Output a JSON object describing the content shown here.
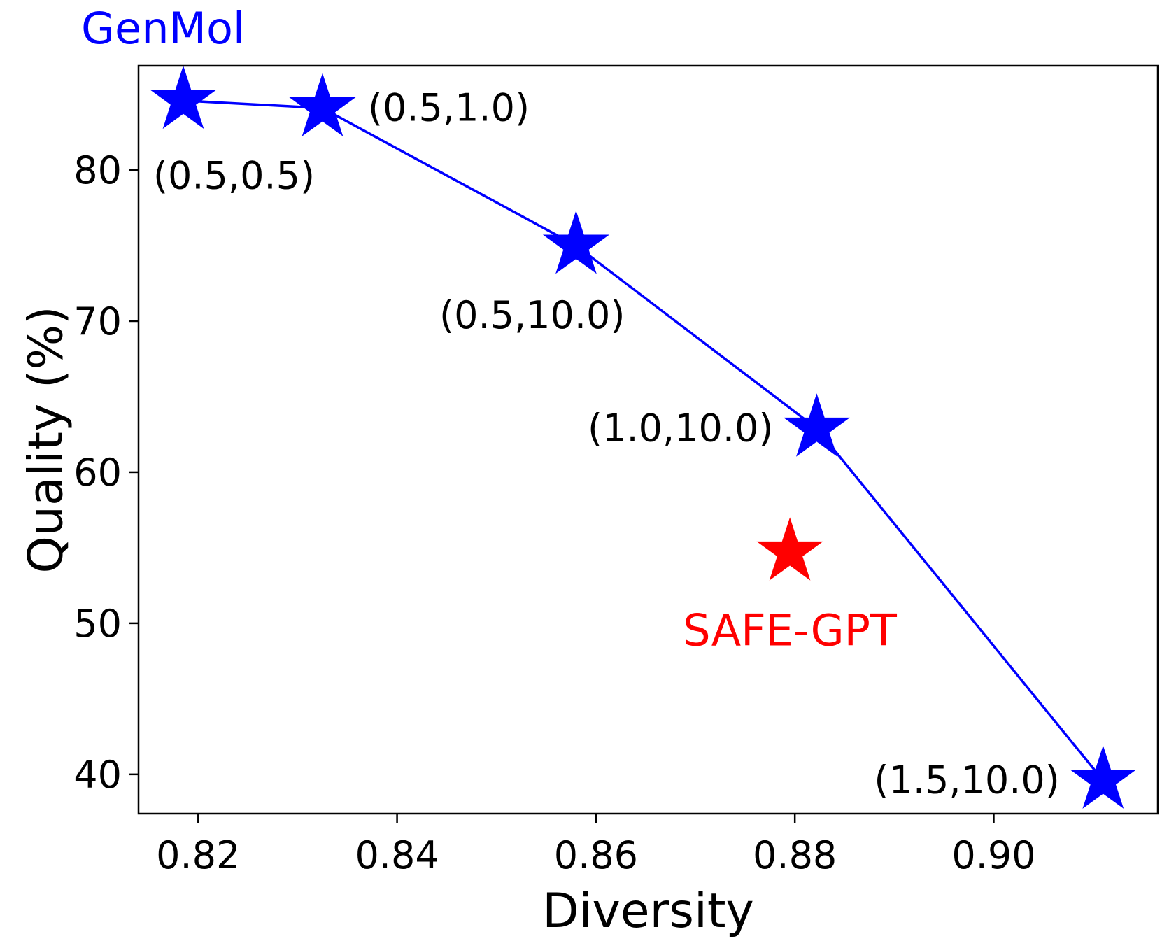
{
  "chart_data": {
    "type": "scatter",
    "xlabel": "Diversity",
    "ylabel": "Quality (%)",
    "xlim": [
      0.814,
      0.9165
    ],
    "ylim": [
      37.4,
      86.9
    ],
    "xticks": [
      0.82,
      0.84,
      0.86,
      0.88,
      0.9
    ],
    "xtick_labels": [
      "0.82",
      "0.84",
      "0.86",
      "0.88",
      "0.90"
    ],
    "yticks": [
      40,
      50,
      60,
      70,
      80
    ],
    "ytick_labels": [
      "40",
      "50",
      "60",
      "70",
      "80"
    ],
    "grid": false,
    "series": [
      {
        "name": "GenMol",
        "color": "#0000ff",
        "marker": "star",
        "connected": true,
        "points": [
          {
            "x": 0.8185,
            "y": 84.6,
            "label": "(0.5,0.5)",
            "label_pos": "below"
          },
          {
            "x": 0.8325,
            "y": 84.1,
            "label": "(0.5,1.0)",
            "label_pos": "right"
          },
          {
            "x": 0.858,
            "y": 75.0,
            "label": "(0.5,10.0)",
            "label_pos": "below-left"
          },
          {
            "x": 0.8822,
            "y": 62.9,
            "label": "(1.0,10.0)",
            "label_pos": "left"
          },
          {
            "x": 0.911,
            "y": 39.6,
            "label": "(1.5,10.0)",
            "label_pos": "left"
          }
        ]
      },
      {
        "name": "SAFE-GPT",
        "color": "#ff0000",
        "marker": "star",
        "connected": false,
        "points": [
          {
            "x": 0.8795,
            "y": 54.7
          }
        ]
      }
    ]
  }
}
